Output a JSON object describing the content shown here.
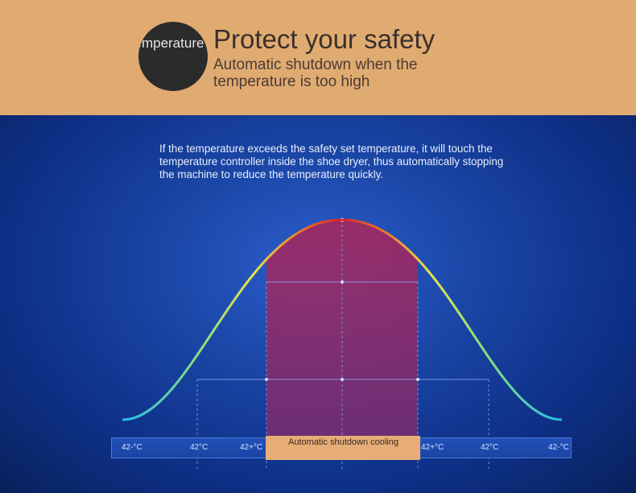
{
  "header": {
    "badge_text": "Temperature control",
    "title": "Protect your safety",
    "subtitle": "Automatic shutdown when the temperature is too high"
  },
  "main": {
    "description": "If the temperature exceeds the safety set temperature, it will touch the temperature controller inside the shoe dryer, thus automatically stopping the machine to reduce the temperature quickly.",
    "ticks": [
      "42-°C",
      "42°C",
      "42+°C",
      "42+°C",
      "42°C",
      "42-°C"
    ],
    "callout": "Automatic shutdown cooling"
  },
  "colors": {
    "banner": "#e0ab71",
    "panel": "#1a46a6",
    "curve_start": "#29b9e6",
    "curve_mid": "#e8e14a",
    "curve_peak": "#e01f2a",
    "callout_bg": "#e6ad76"
  }
}
